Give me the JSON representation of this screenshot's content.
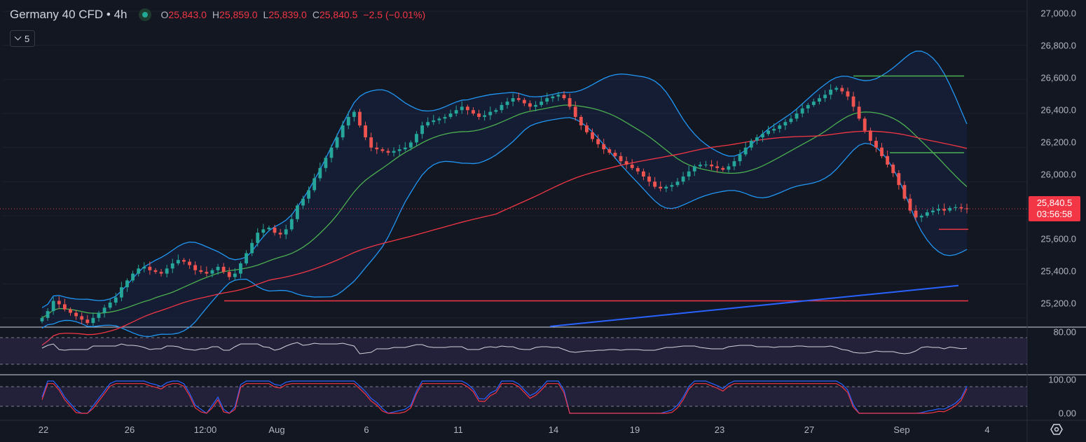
{
  "header": {
    "symbol": "Germany 40 CFD • 4h",
    "ohlc": [
      {
        "key": "O",
        "value": "25,843.0"
      },
      {
        "key": "H",
        "value": "25,859.0"
      },
      {
        "key": "L",
        "value": "25,839.0"
      },
      {
        "key": "C",
        "value": "25,840.5"
      }
    ],
    "change": "−2.5 (−0.01%)",
    "indicators_toggle": "5"
  },
  "price_axis": [
    "27,000.0",
    "26,800.0",
    "26,600.0",
    "26,400.0",
    "26,200.0",
    "26,000.0",
    "25,800.0",
    "25,600.0",
    "25,400.0",
    "25,200.0"
  ],
  "last_price": {
    "price": "25,840.5",
    "countdown": "03:56:58"
  },
  "rsi_axis": {
    "top": "80.00"
  },
  "stoch_axis": {
    "top": "100.00",
    "bottom": "0.00"
  },
  "time_axis": [
    "22",
    "26",
    "12:00",
    "Aug",
    "6",
    "11",
    "14",
    "19",
    "23",
    "27",
    "Sep",
    "4"
  ],
  "colors": {
    "up": "#26a69a",
    "down": "#ef5350",
    "bb": "#2962ff",
    "ma": "#f23645",
    "basis": "#4caf50"
  },
  "chart_data": {
    "type": "candlestick",
    "timeframe": "4h",
    "ylim": [
      25150,
      27050
    ],
    "closes": [
      25200,
      25240,
      25300,
      25280,
      25250,
      25230,
      25210,
      25190,
      25170,
      25200,
      25230,
      25260,
      25290,
      25320,
      25380,
      25420,
      25460,
      25490,
      25500,
      25480,
      25470,
      25460,
      25490,
      25520,
      25540,
      25530,
      25510,
      25480,
      25470,
      25460,
      25480,
      25500,
      25470,
      25440,
      25460,
      25520,
      25580,
      25640,
      25700,
      25720,
      25730,
      25700,
      25690,
      25720,
      25780,
      25860,
      25900,
      25950,
      26020,
      26080,
      26140,
      26200,
      26260,
      26330,
      26380,
      26410,
      26330,
      26260,
      26200,
      26190,
      26180,
      26170,
      26180,
      26190,
      26200,
      26230,
      26280,
      26330,
      26350,
      26360,
      26370,
      26380,
      26400,
      26420,
      26440,
      26420,
      26400,
      26380,
      26390,
      26410,
      26420,
      26450,
      26470,
      26490,
      26480,
      26460,
      26440,
      26450,
      26470,
      26490,
      26500,
      26510,
      26490,
      26440,
      26380,
      26330,
      26290,
      26250,
      26220,
      26190,
      26170,
      26150,
      26120,
      26100,
      26080,
      26060,
      26030,
      26000,
      25970,
      25960,
      25970,
      25980,
      26000,
      26030,
      26060,
      26090,
      26100,
      26100,
      26090,
      26080,
      26070,
      26090,
      26120,
      26160,
      26200,
      26240,
      26260,
      26280,
      26300,
      26310,
      26330,
      26350,
      26370,
      26400,
      26430,
      26450,
      26470,
      26490,
      26510,
      26540,
      26550,
      26530,
      26500,
      26440,
      26370,
      26300,
      26240,
      26200,
      26150,
      26100,
      26050,
      25980,
      25900,
      25830,
      25790,
      25800,
      25820,
      25830,
      25840,
      25830,
      25845,
      25850,
      25843,
      25840.5
    ],
    "indicators": [
      "Bollinger Bands",
      "Moving Average",
      "RSI",
      "Stochastic"
    ]
  }
}
